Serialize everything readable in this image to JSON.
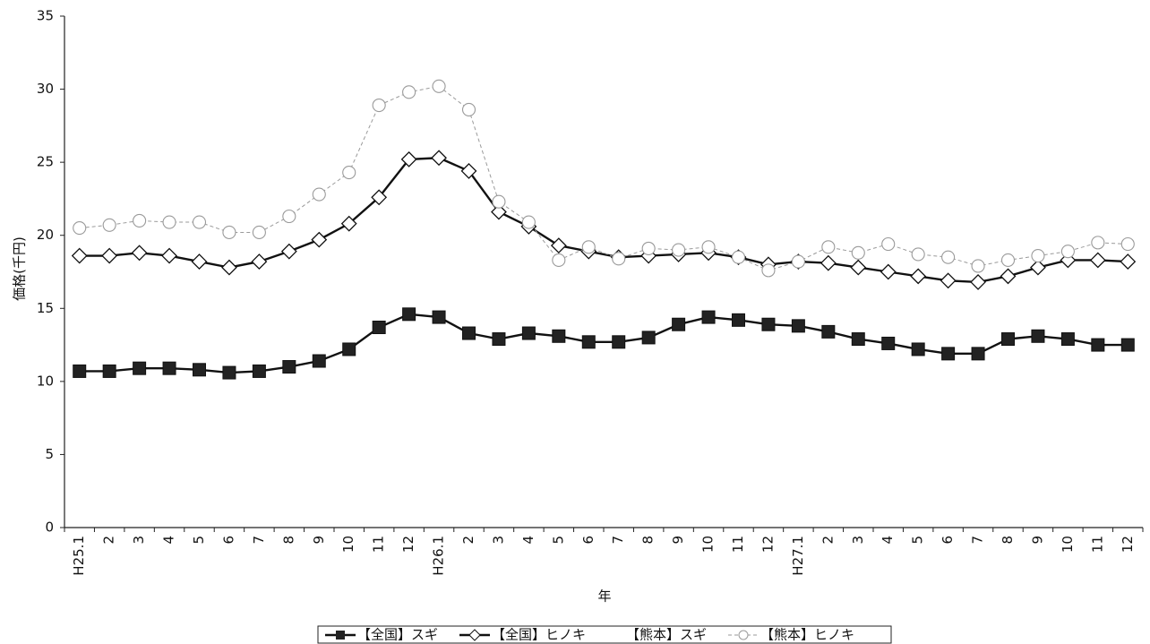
{
  "chart_data": {
    "type": "line",
    "ylabel": "価格(千円)",
    "xlabel": "年",
    "categories": [
      "H25.1",
      "2",
      "3",
      "4",
      "5",
      "6",
      "7",
      "8",
      "9",
      "10",
      "11",
      "12",
      "H26.1",
      "2",
      "3",
      "4",
      "5",
      "6",
      "7",
      "8",
      "9",
      "10",
      "11",
      "12",
      "H27.1",
      "2",
      "3",
      "4",
      "5",
      "6",
      "7",
      "8",
      "9",
      "10",
      "11",
      "12"
    ],
    "ylim": [
      0,
      35
    ],
    "yticks": [
      0,
      5,
      10,
      15,
      20,
      25,
      30,
      35
    ],
    "legend": "bottom",
    "series": [
      {
        "name": "【全国】スギ",
        "color": "#111111",
        "marker": "square",
        "dashed": false,
        "values": [
          10.7,
          10.7,
          10.9,
          10.9,
          10.8,
          10.6,
          10.7,
          11.0,
          11.4,
          12.2,
          13.7,
          14.6,
          14.4,
          13.3,
          12.9,
          13.3,
          13.1,
          12.7,
          12.7,
          13.0,
          13.9,
          14.4,
          14.2,
          13.9,
          13.8,
          13.4,
          12.9,
          12.6,
          12.2,
          11.9,
          11.9,
          12.9,
          13.1,
          12.9,
          12.5,
          12.5
        ]
      },
      {
        "name": "【全国】ヒノキ",
        "color": "#111111",
        "marker": "diamond",
        "dashed": false,
        "values": [
          18.6,
          18.6,
          18.8,
          18.6,
          18.2,
          17.8,
          18.2,
          18.9,
          19.7,
          20.8,
          22.6,
          25.2,
          25.3,
          24.4,
          21.6,
          20.6,
          19.3,
          18.9,
          18.5,
          18.6,
          18.7,
          18.8,
          18.5,
          18.0,
          18.2,
          18.1,
          17.8,
          17.5,
          17.2,
          16.9,
          16.8,
          17.2,
          17.8,
          18.3,
          18.3,
          18.2
        ]
      },
      {
        "name": "【熊本】スギ",
        "color": "#ffffff",
        "marker": "none",
        "dashed": false,
        "values": [
          null,
          null,
          null,
          null,
          null,
          null,
          null,
          null,
          null,
          null,
          null,
          null,
          null,
          null,
          null,
          null,
          null,
          null,
          null,
          null,
          null,
          null,
          null,
          null,
          null,
          null,
          null,
          null,
          null,
          null,
          null,
          null,
          null,
          null,
          null,
          null
        ]
      },
      {
        "name": "【熊本】ヒノキ",
        "color": "#9a9a9a",
        "marker": "circle",
        "dashed": true,
        "values": [
          20.5,
          20.7,
          21.0,
          20.9,
          20.9,
          20.2,
          20.2,
          21.3,
          22.8,
          24.3,
          28.9,
          29.8,
          30.2,
          28.6,
          22.3,
          20.9,
          18.3,
          19.2,
          18.4,
          19.1,
          19.0,
          19.2,
          18.5,
          17.6,
          18.2,
          19.2,
          18.8,
          19.4,
          18.7,
          18.5,
          17.9,
          18.3,
          18.6,
          18.9,
          19.5,
          19.4
        ]
      }
    ]
  }
}
